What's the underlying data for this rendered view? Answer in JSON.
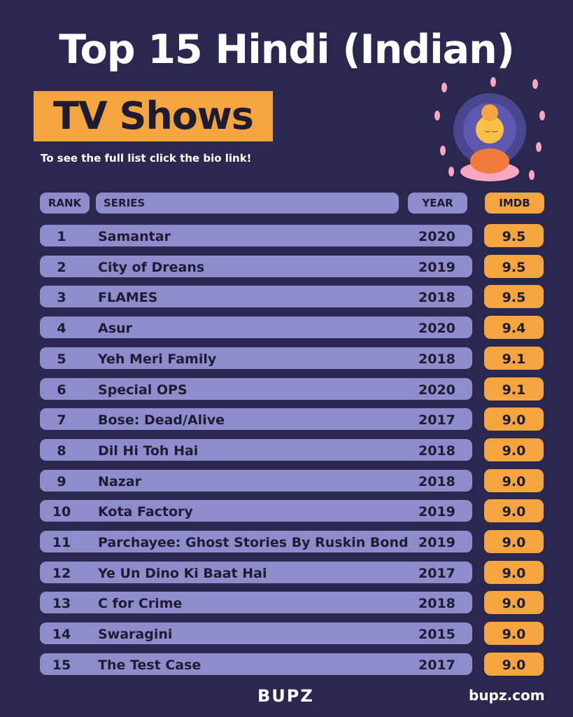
{
  "header": {
    "title": "Top 15 Hindi (Indian)",
    "highlight": "TV Shows",
    "subtitle": "To see the full list click the bio link!"
  },
  "table": {
    "columns": [
      "RANK",
      "SERIES",
      "YEAR",
      "IMDB"
    ],
    "rows": [
      [
        "1",
        "Samantar",
        "2020",
        "9.5"
      ],
      [
        "2",
        "City of Dreans",
        "2019",
        "9.5"
      ],
      [
        "3",
        "FLAMES",
        "2018",
        "9.5"
      ],
      [
        "4",
        "Asur",
        "2020",
        "9.4"
      ],
      [
        "5",
        "Yeh Meri Family",
        "2018",
        "9.1"
      ],
      [
        "6",
        "Special OPS",
        "2020",
        "9.1"
      ],
      [
        "7",
        "Bose: Dead/Alive",
        "2017",
        "9.0"
      ],
      [
        "8",
        "Dil Hi Toh Hai",
        "2018",
        "9.0"
      ],
      [
        "9",
        "Nazar",
        "2018",
        "9.0"
      ],
      [
        "10",
        "Kota Factory",
        "2019",
        "9.0"
      ],
      [
        "11",
        "Parchayee: Ghost Stories By Ruskin Bond",
        "2019",
        "9.0"
      ],
      [
        "12",
        "Ye Un Dino Ki Baat Hai",
        "2017",
        "9.0"
      ],
      [
        "13",
        "C for Crime",
        "2018",
        "9.0"
      ],
      [
        "14",
        "Swaragini",
        "2015",
        "9.0"
      ],
      [
        "15",
        "The Test Case",
        "2017",
        "9.0"
      ]
    ]
  },
  "footer": {
    "logo": "BUPZ",
    "site": "bupz.com"
  }
}
